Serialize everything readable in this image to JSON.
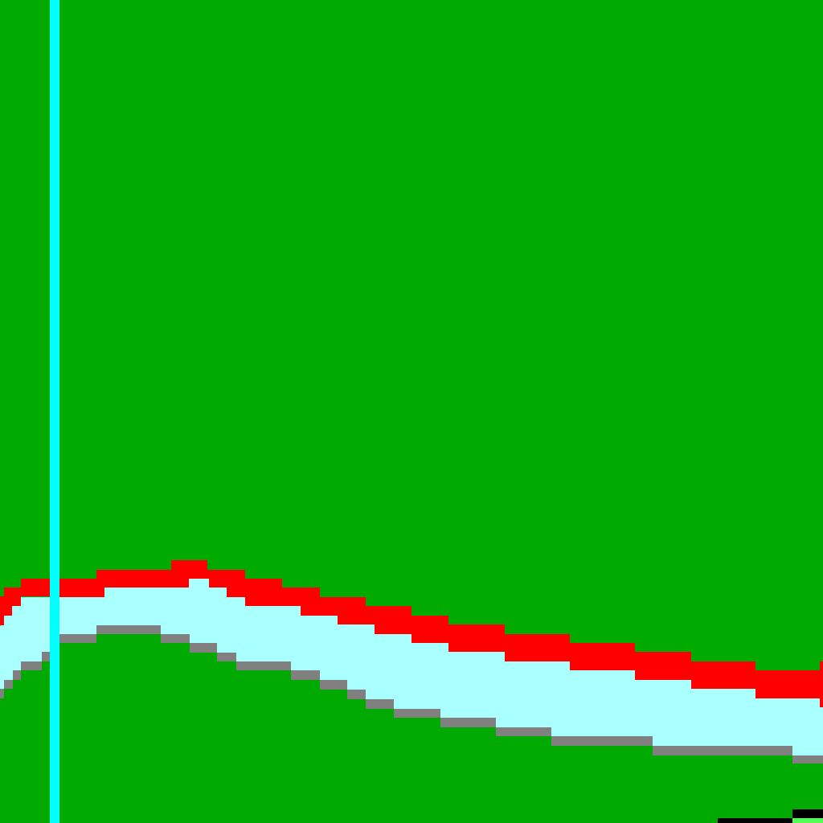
{
  "scene": {
    "type": "pixel-art terrain view",
    "colors": {
      "grass": "#00aa00",
      "road_edge": "#ff0000",
      "road_surface": "#aaffff",
      "curb": "#808080",
      "marker_line": "#00ffff",
      "dark_block": "#000000",
      "light_block": "#55ff55"
    },
    "elements": [
      "grass-field",
      "red-road-edge",
      "light-cyan-road",
      "gray-curb",
      "cyan-vertical-marker",
      "black-ledge"
    ]
  }
}
